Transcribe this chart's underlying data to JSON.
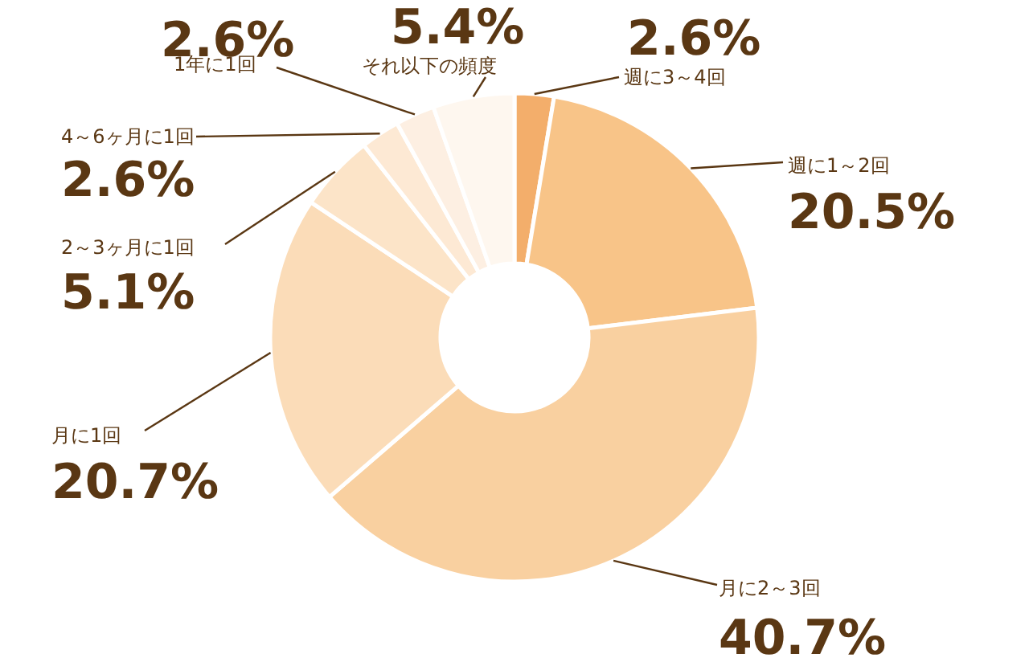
{
  "chart_data": {
    "type": "donut",
    "categories": [
      "週に3～4回",
      "週に1～2回",
      "月に2～3回",
      "月に1回",
      "2～3ヶ月に1回",
      "4～6ヶ月に1回",
      "1年に1回",
      "それ以下の頻度"
    ],
    "values": [
      2.6,
      20.5,
      40.7,
      20.7,
      5.1,
      2.6,
      2.6,
      5.4
    ],
    "colors": [
      "#f3ae6b",
      "#f8c488",
      "#f9d0a0",
      "#fbdcb8",
      "#fce4c8",
      "#fde9d4",
      "#fdefe2",
      "#fef7ef"
    ],
    "value_labels": [
      "2.6%",
      "20.5%",
      "40.7%",
      "20.7%",
      "5.1%",
      "2.6%",
      "2.6%",
      "5.4%"
    ]
  }
}
